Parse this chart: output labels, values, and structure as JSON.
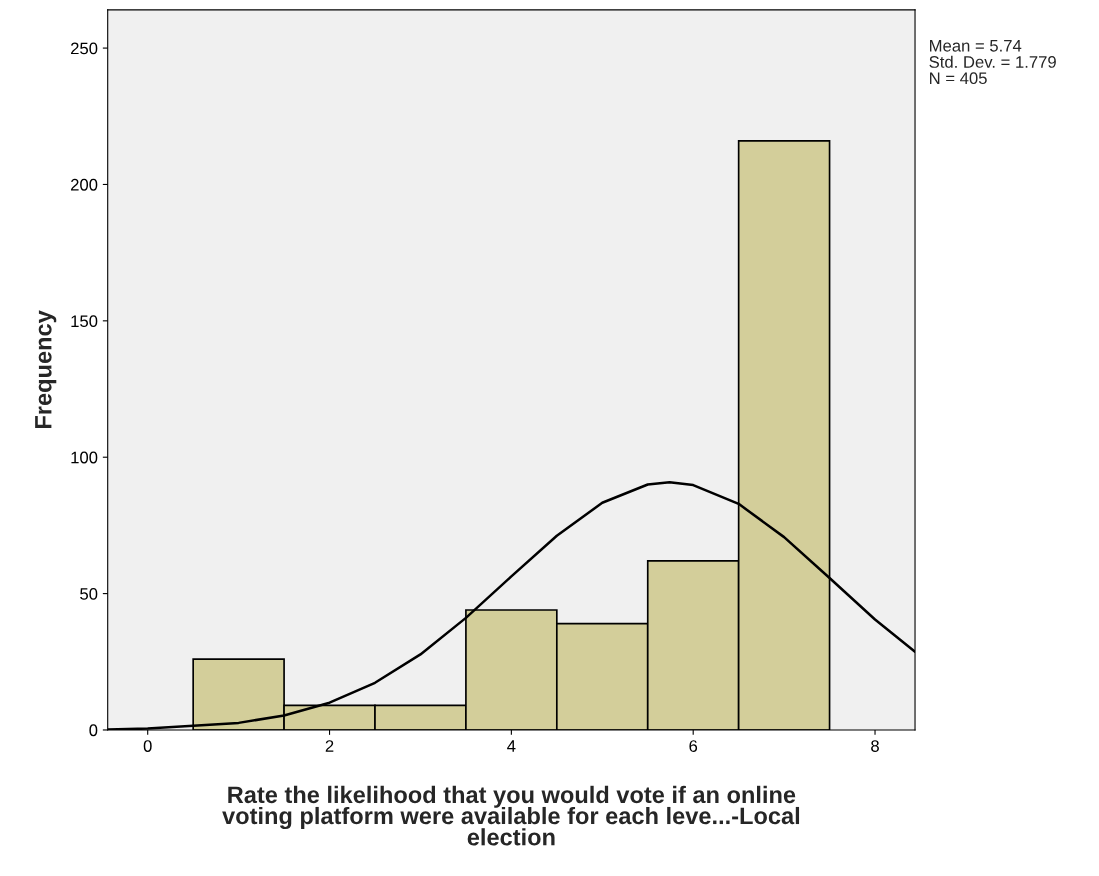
{
  "chart_data": {
    "type": "histogram",
    "xlabel": "Rate the likelihood that you would vote if an online\nvoting platform were available for each leve...-Local\nelection",
    "ylabel": "Frequency",
    "bins": [
      0.5,
      1.5,
      2.5,
      3.5,
      4.5,
      5.5,
      6.5,
      7.5
    ],
    "series": [
      {
        "color": "#d3ce9a",
        "values": [
          26,
          9,
          9,
          44,
          39,
          62,
          216
        ]
      },
      {
        "type": "line",
        "color": "#000000",
        "x": [
          -0.44,
          0,
          1,
          1.5,
          2,
          2.5,
          3,
          3.5,
          4,
          4.5,
          5,
          5.5,
          5.74,
          6,
          6.5,
          7,
          7.5,
          8,
          8.44
        ],
        "values": [
          0.2,
          0.5,
          2.6,
          5.3,
          10,
          17.3,
          27.7,
          41.1,
          56.3,
          71.2,
          83.3,
          90,
          90.8,
          89.8,
          82.9,
          70.7,
          55.7,
          40.5,
          28.7
        ]
      }
    ],
    "xlim": [
      -0.44,
      8.44
    ],
    "ylim": [
      0,
      264
    ],
    "xticks": [
      0,
      2,
      4,
      6,
      8
    ],
    "yticks": [
      0,
      50,
      100,
      150,
      200,
      250
    ],
    "grid": false,
    "legend": false,
    "marker": "none",
    "line_style": "solid",
    "annotations": [
      "Mean = 5.74",
      "Std. Dev. = 1.779",
      "N = 405"
    ]
  }
}
